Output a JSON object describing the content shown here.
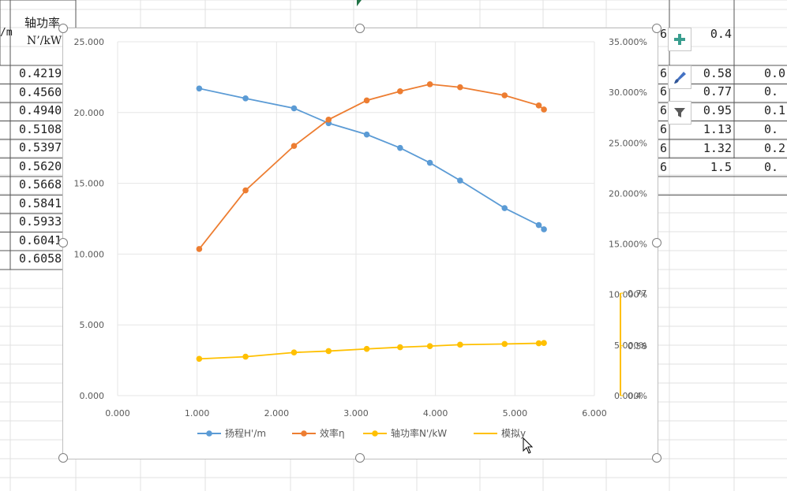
{
  "spreadsheet": {
    "left_header_top": "/m",
    "header_col": [
      "轴功率",
      "N’/kW"
    ],
    "shaft_power_col": [
      "0.4219",
      "0.4560",
      "0.4940",
      "0.5108",
      "0.5397",
      "0.5620",
      "0.5668",
      "0.5841",
      "0.5933",
      "0.6041",
      "0.6058"
    ],
    "right_col_a": [
      "6",
      "6",
      "6",
      "6",
      "6",
      "6",
      "6"
    ],
    "right_col_b": [
      "0.4",
      "0.58",
      "0.77",
      "0.95",
      "1.13",
      "1.32",
      "1.5"
    ],
    "right_col_c": [
      "",
      "0.0",
      "0.",
      "0.1",
      "0.",
      "0.2",
      "0."
    ]
  },
  "chart_data": {
    "type": "scatter",
    "x": [
      1.027,
      1.61,
      2.22,
      2.655,
      3.135,
      3.555,
      3.93,
      4.31,
      4.87,
      5.3,
      5.365
    ],
    "xlim": [
      0,
      6
    ],
    "x_ticks": [
      "0.000",
      "1.000",
      "2.000",
      "3.000",
      "4.000",
      "5.000",
      "6.000"
    ],
    "ylim_left": [
      0,
      25
    ],
    "y_left_ticks": [
      "0.000",
      "5.000",
      "10.000",
      "15.000",
      "20.000",
      "25.000"
    ],
    "ylim_right": [
      0,
      0.35
    ],
    "y_right_ticks": [
      "0.000%",
      "5.000%",
      "10.000%",
      "15.000%",
      "20.000%",
      "25.000%",
      "30.000%",
      "35.000%"
    ],
    "ylim_secondary": [
      0.4,
      0.77
    ],
    "y_secondary_ticks": [
      "0.4",
      "0.58",
      "0.77"
    ],
    "legend_position": "bottom",
    "series": [
      {
        "name": "扬程H'/m",
        "color": "#5b9bd5",
        "axis": "left",
        "values": [
          21.7,
          21.0,
          20.3,
          19.25,
          18.45,
          17.5,
          16.45,
          15.2,
          13.25,
          12.05,
          11.75
        ]
      },
      {
        "name": "效率η",
        "color": "#ed7d31",
        "axis": "right",
        "values": [
          0.145,
          0.203,
          0.247,
          0.273,
          0.292,
          0.301,
          0.308,
          0.305,
          0.297,
          0.287,
          0.283
        ]
      },
      {
        "name": "轴功率N'/kW",
        "color": "#ffc000",
        "axis": "left",
        "values": [
          2.6,
          2.75,
          3.05,
          3.15,
          3.3,
          3.42,
          3.5,
          3.6,
          3.65,
          3.7,
          3.72
        ]
      },
      {
        "name": "模拟y",
        "color": "#ffc000",
        "axis": "secondary",
        "values": []
      }
    ]
  },
  "chart_tools": {
    "add": "plus-icon",
    "style": "brush-icon",
    "filter": "funnel-icon"
  }
}
